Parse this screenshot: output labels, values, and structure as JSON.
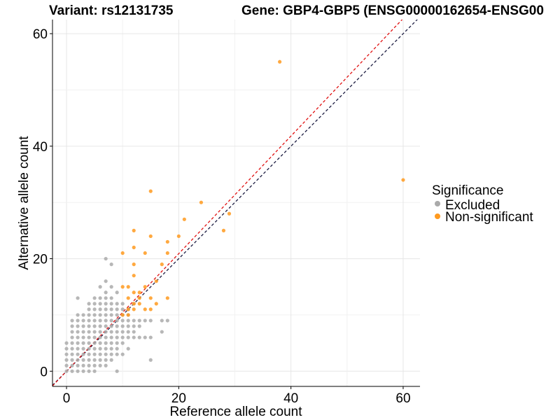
{
  "chart_data": {
    "type": "scatter",
    "title_left": "Variant: rs12131735",
    "title_right": "Gene: GBP4-GBP5 (ENSG00000162654-ENSG00",
    "xlabel": "Reference allele count",
    "ylabel": "Alternative allele count",
    "xlim": [
      -2.5,
      63
    ],
    "ylim": [
      -2.7,
      62.5
    ],
    "xticks": [
      0,
      20,
      40,
      60
    ],
    "yticks": [
      0,
      20,
      40,
      60
    ],
    "grid": true,
    "legend": {
      "title": "Significance",
      "position": "right",
      "entries": [
        {
          "label": "Excluded",
          "color": "#aaaaaa"
        },
        {
          "label": "Non-significant",
          "color": "#ff9a1f"
        }
      ]
    },
    "colors": {
      "excluded": "#aaaaaa",
      "nonsignificant": "#ff9a1f",
      "identity_line": "#1a1a40",
      "fit_line": "#e01010"
    },
    "reference_lines": [
      {
        "slope": 1.0,
        "intercept": 0,
        "color": "#1a1a40",
        "style": "dashed"
      },
      {
        "slope": 1.045,
        "intercept": 0,
        "color": "#e01010",
        "style": "dashed"
      }
    ],
    "series": [
      {
        "name": "Excluded",
        "color": "#aaaaaa",
        "points": [
          [
            0,
            0
          ],
          [
            0,
            1
          ],
          [
            0,
            2
          ],
          [
            0,
            3
          ],
          [
            0,
            4
          ],
          [
            0,
            5
          ],
          [
            1,
            0
          ],
          [
            1,
            1
          ],
          [
            1,
            2
          ],
          [
            1,
            3
          ],
          [
            1,
            4
          ],
          [
            1,
            5
          ],
          [
            1,
            6
          ],
          [
            1,
            7
          ],
          [
            1,
            8
          ],
          [
            1,
            9
          ],
          [
            2,
            0
          ],
          [
            2,
            1
          ],
          [
            2,
            2
          ],
          [
            2,
            3
          ],
          [
            2,
            4
          ],
          [
            2,
            5
          ],
          [
            2,
            6
          ],
          [
            2,
            7
          ],
          [
            2,
            8
          ],
          [
            2,
            9
          ],
          [
            2,
            10
          ],
          [
            2,
            13
          ],
          [
            3,
            0
          ],
          [
            3,
            1
          ],
          [
            3,
            2
          ],
          [
            3,
            3
          ],
          [
            3,
            4
          ],
          [
            3,
            5
          ],
          [
            3,
            6
          ],
          [
            3,
            7
          ],
          [
            3,
            8
          ],
          [
            3,
            9
          ],
          [
            3,
            10
          ],
          [
            4,
            0
          ],
          [
            4,
            1
          ],
          [
            4,
            2
          ],
          [
            4,
            3
          ],
          [
            4,
            4
          ],
          [
            4,
            5
          ],
          [
            4,
            6
          ],
          [
            4,
            7
          ],
          [
            4,
            8
          ],
          [
            4,
            9
          ],
          [
            4,
            10
          ],
          [
            4,
            11
          ],
          [
            4,
            12
          ],
          [
            5,
            0
          ],
          [
            5,
            1
          ],
          [
            5,
            2
          ],
          [
            5,
            3
          ],
          [
            5,
            4
          ],
          [
            5,
            5
          ],
          [
            5,
            6
          ],
          [
            5,
            7
          ],
          [
            5,
            8
          ],
          [
            5,
            9
          ],
          [
            5,
            10
          ],
          [
            5,
            11
          ],
          [
            5,
            12
          ],
          [
            5,
            13
          ],
          [
            6,
            1
          ],
          [
            6,
            2
          ],
          [
            6,
            3
          ],
          [
            6,
            4
          ],
          [
            6,
            5
          ],
          [
            6,
            6
          ],
          [
            6,
            7
          ],
          [
            6,
            8
          ],
          [
            6,
            9
          ],
          [
            6,
            10
          ],
          [
            6,
            11
          ],
          [
            6,
            12
          ],
          [
            6,
            13
          ],
          [
            6,
            15
          ],
          [
            7,
            1
          ],
          [
            7,
            2
          ],
          [
            7,
            3
          ],
          [
            7,
            4
          ],
          [
            7,
            5
          ],
          [
            7,
            6
          ],
          [
            7,
            7
          ],
          [
            7,
            8
          ],
          [
            7,
            9
          ],
          [
            7,
            10
          ],
          [
            7,
            11
          ],
          [
            7,
            12
          ],
          [
            7,
            13
          ],
          [
            7,
            14
          ],
          [
            7,
            16
          ],
          [
            7,
            20
          ],
          [
            8,
            2
          ],
          [
            8,
            3
          ],
          [
            8,
            4
          ],
          [
            8,
            5
          ],
          [
            8,
            6
          ],
          [
            8,
            7
          ],
          [
            8,
            8
          ],
          [
            8,
            9
          ],
          [
            8,
            10
          ],
          [
            8,
            11
          ],
          [
            8,
            12
          ],
          [
            8,
            13
          ],
          [
            8,
            15
          ],
          [
            8,
            19
          ],
          [
            9,
            0
          ],
          [
            9,
            3
          ],
          [
            9,
            4
          ],
          [
            9,
            5
          ],
          [
            9,
            6
          ],
          [
            9,
            7
          ],
          [
            9,
            8
          ],
          [
            9,
            9
          ],
          [
            9,
            10
          ],
          [
            9,
            11
          ],
          [
            9,
            12
          ],
          [
            9,
            14
          ],
          [
            10,
            3
          ],
          [
            10,
            5
          ],
          [
            10,
            6
          ],
          [
            10,
            7
          ],
          [
            10,
            8
          ],
          [
            10,
            9
          ],
          [
            10,
            10
          ],
          [
            10,
            11
          ],
          [
            10,
            12
          ],
          [
            11,
            4
          ],
          [
            11,
            6
          ],
          [
            11,
            7
          ],
          [
            11,
            8
          ],
          [
            11,
            9
          ],
          [
            11,
            10
          ],
          [
            11,
            11
          ],
          [
            12,
            6
          ],
          [
            12,
            7
          ],
          [
            12,
            8
          ],
          [
            12,
            9
          ],
          [
            12,
            12
          ],
          [
            13,
            6
          ],
          [
            13,
            8
          ],
          [
            13,
            9
          ],
          [
            14,
            6
          ],
          [
            14,
            9
          ],
          [
            15,
            2
          ],
          [
            15,
            6
          ],
          [
            15,
            9
          ],
          [
            17,
            7
          ],
          [
            17,
            9
          ],
          [
            18,
            9
          ]
        ]
      },
      {
        "name": "Non-significant",
        "color": "#ff9a1f",
        "points": [
          [
            38,
            55
          ],
          [
            60,
            34
          ],
          [
            15,
            32
          ],
          [
            24,
            30
          ],
          [
            29,
            28
          ],
          [
            21,
            27
          ],
          [
            28,
            25
          ],
          [
            12,
            25
          ],
          [
            15,
            24
          ],
          [
            20,
            24
          ],
          [
            18,
            23
          ],
          [
            12,
            22
          ],
          [
            14,
            21
          ],
          [
            10,
            21
          ],
          [
            18,
            21
          ],
          [
            12,
            19
          ],
          [
            17,
            19
          ],
          [
            12,
            17
          ],
          [
            16,
            16
          ],
          [
            10,
            15
          ],
          [
            11,
            15
          ],
          [
            12,
            14
          ],
          [
            13,
            14
          ],
          [
            14,
            15
          ],
          [
            13,
            13
          ],
          [
            15,
            13
          ],
          [
            11,
            13
          ],
          [
            12,
            12
          ],
          [
            13,
            12
          ],
          [
            16,
            12
          ],
          [
            18,
            13
          ],
          [
            14,
            11
          ],
          [
            15,
            11
          ],
          [
            12,
            11
          ],
          [
            11,
            11
          ],
          [
            10,
            10
          ],
          [
            11,
            10
          ]
        ]
      }
    ]
  }
}
